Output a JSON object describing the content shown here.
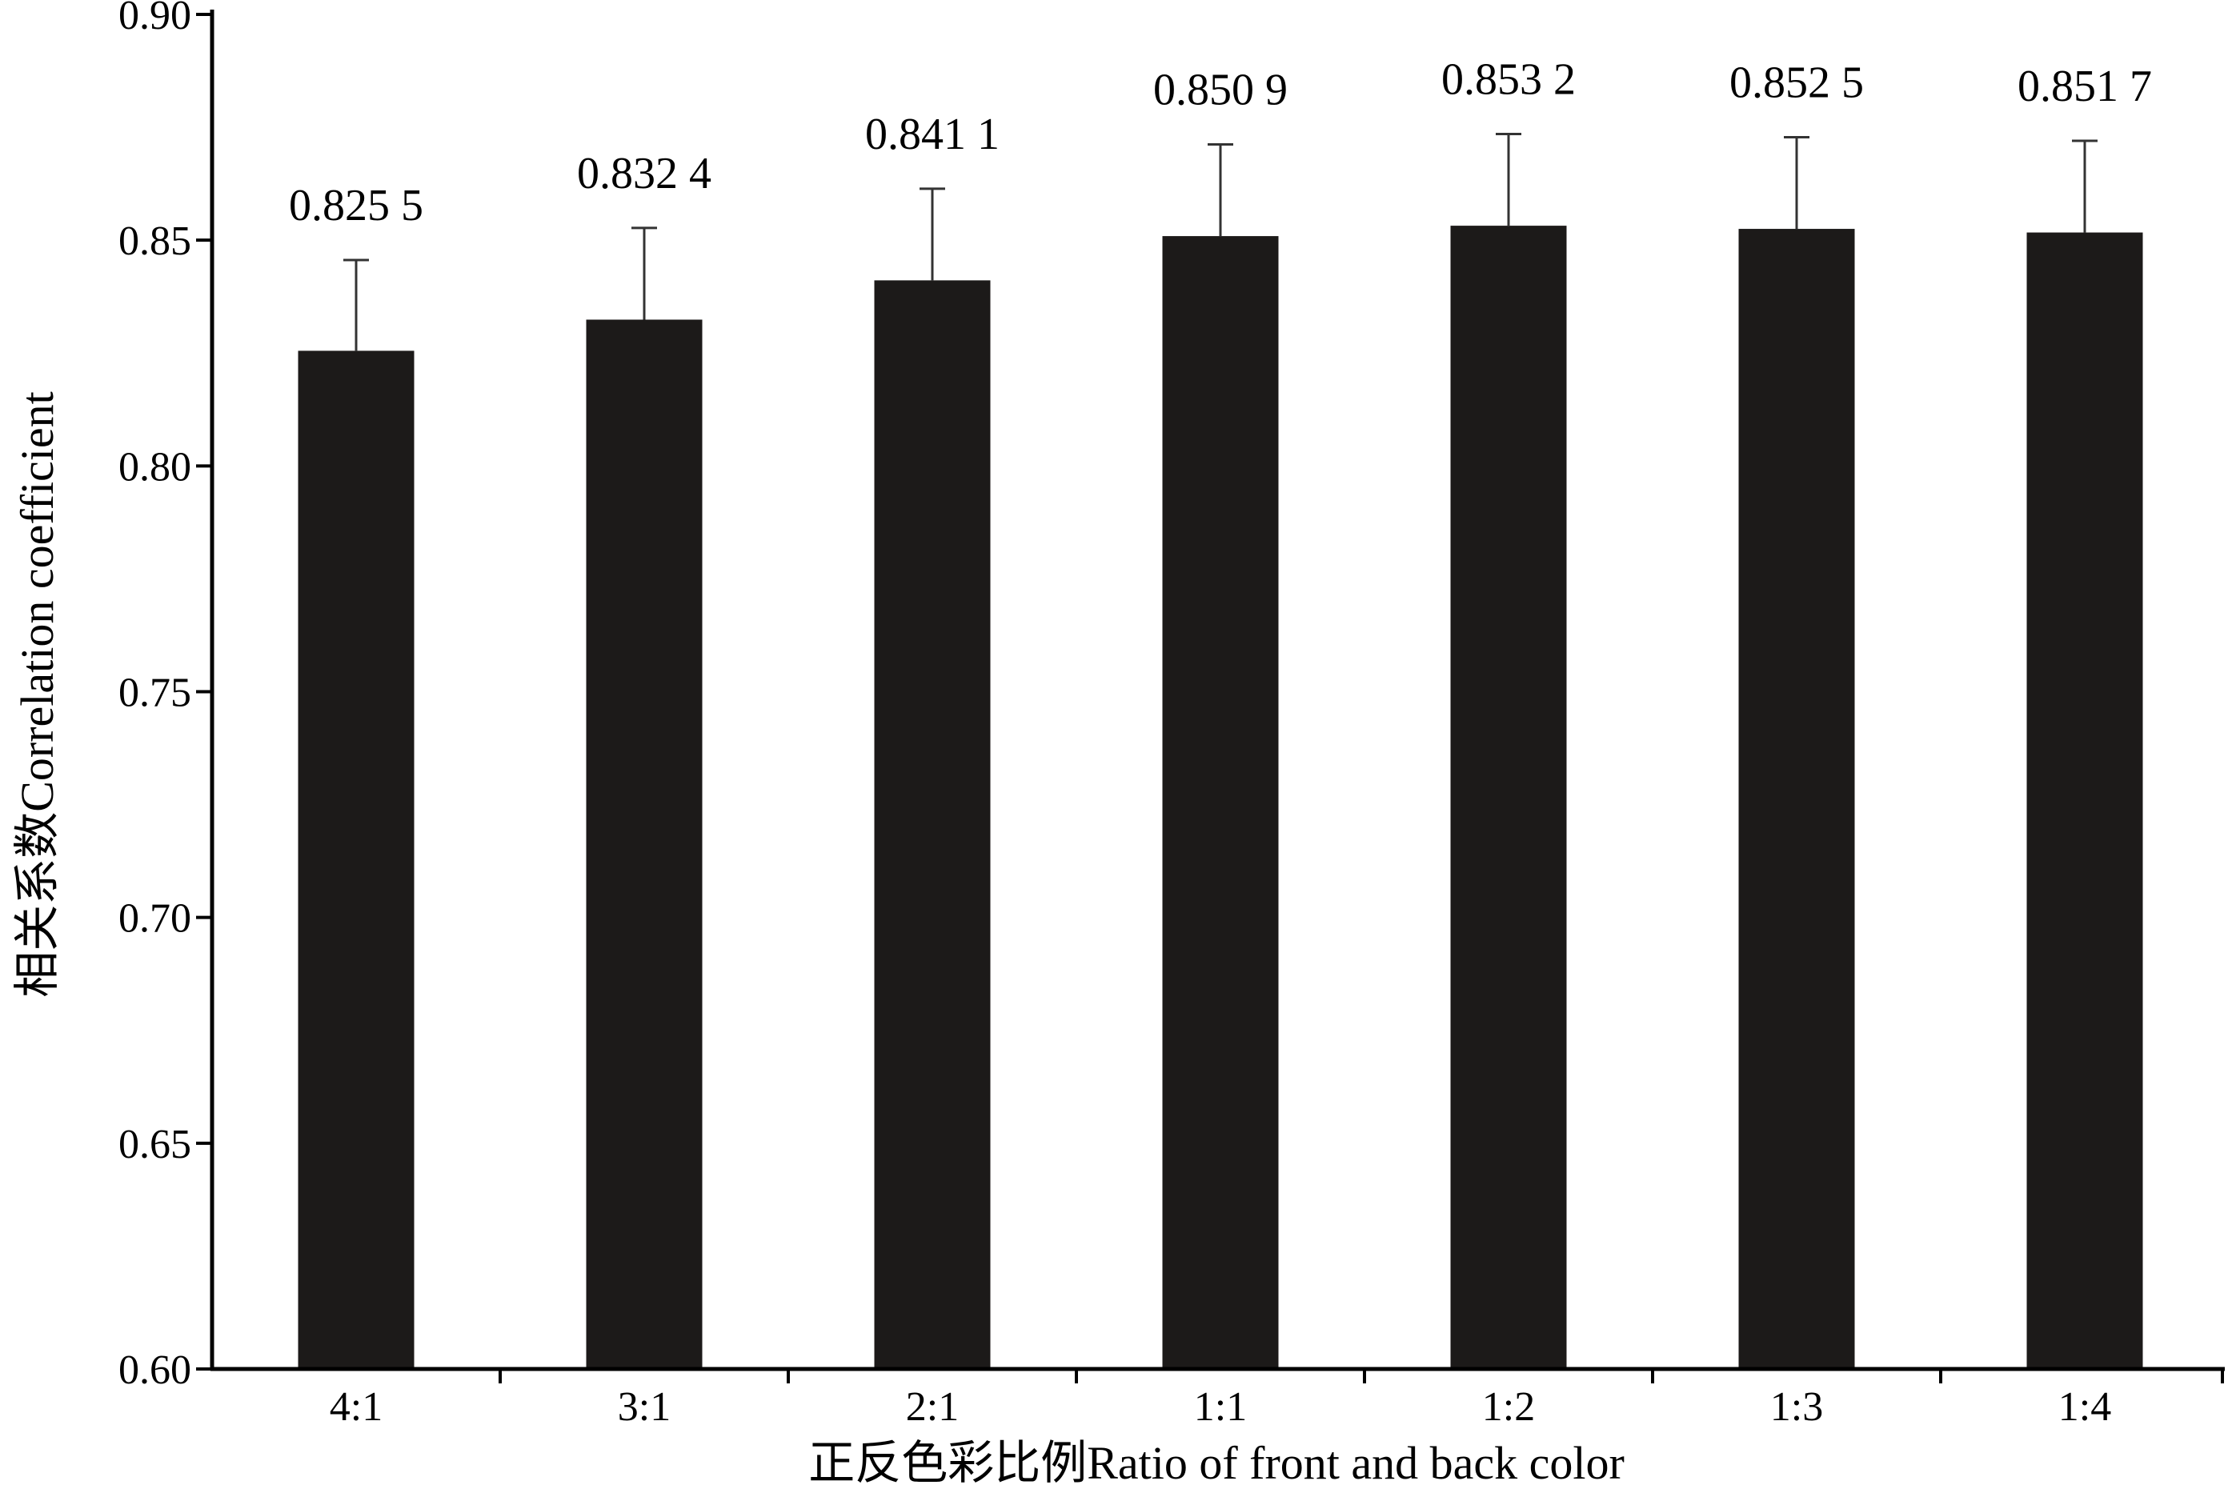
{
  "chart_data": {
    "type": "bar",
    "title": "",
    "xlabel": "正反色彩比例Ratio of front and back color",
    "ylabel": "相关系数Correlation coefficient",
    "categories": [
      "4:1",
      "3:1",
      "2:1",
      "1:1",
      "1:2",
      "1:3",
      "1:4"
    ],
    "values": [
      0.8255,
      0.8324,
      0.8411,
      0.8509,
      0.8532,
      0.8525,
      0.8517
    ],
    "value_labels": [
      "0.825 5",
      "0.832 4",
      "0.841 1",
      "0.850 9",
      "0.853 2",
      "0.852 5",
      "0.851 7"
    ],
    "error_upper": [
      0.0201,
      0.0203,
      0.0203,
      0.0203,
      0.0203,
      0.0203,
      0.0203
    ],
    "ylim": [
      0.6,
      0.9
    ],
    "yticks": [
      0.6,
      0.65,
      0.7,
      0.75,
      0.8,
      0.85,
      0.9
    ],
    "ytick_labels": [
      "0.60",
      "0.65",
      "0.70",
      "0.75",
      "0.80",
      "0.85",
      "0.90"
    ],
    "grid": false,
    "legend": "none",
    "bar_color": "#1c1a19",
    "axis_color": "#000000"
  }
}
